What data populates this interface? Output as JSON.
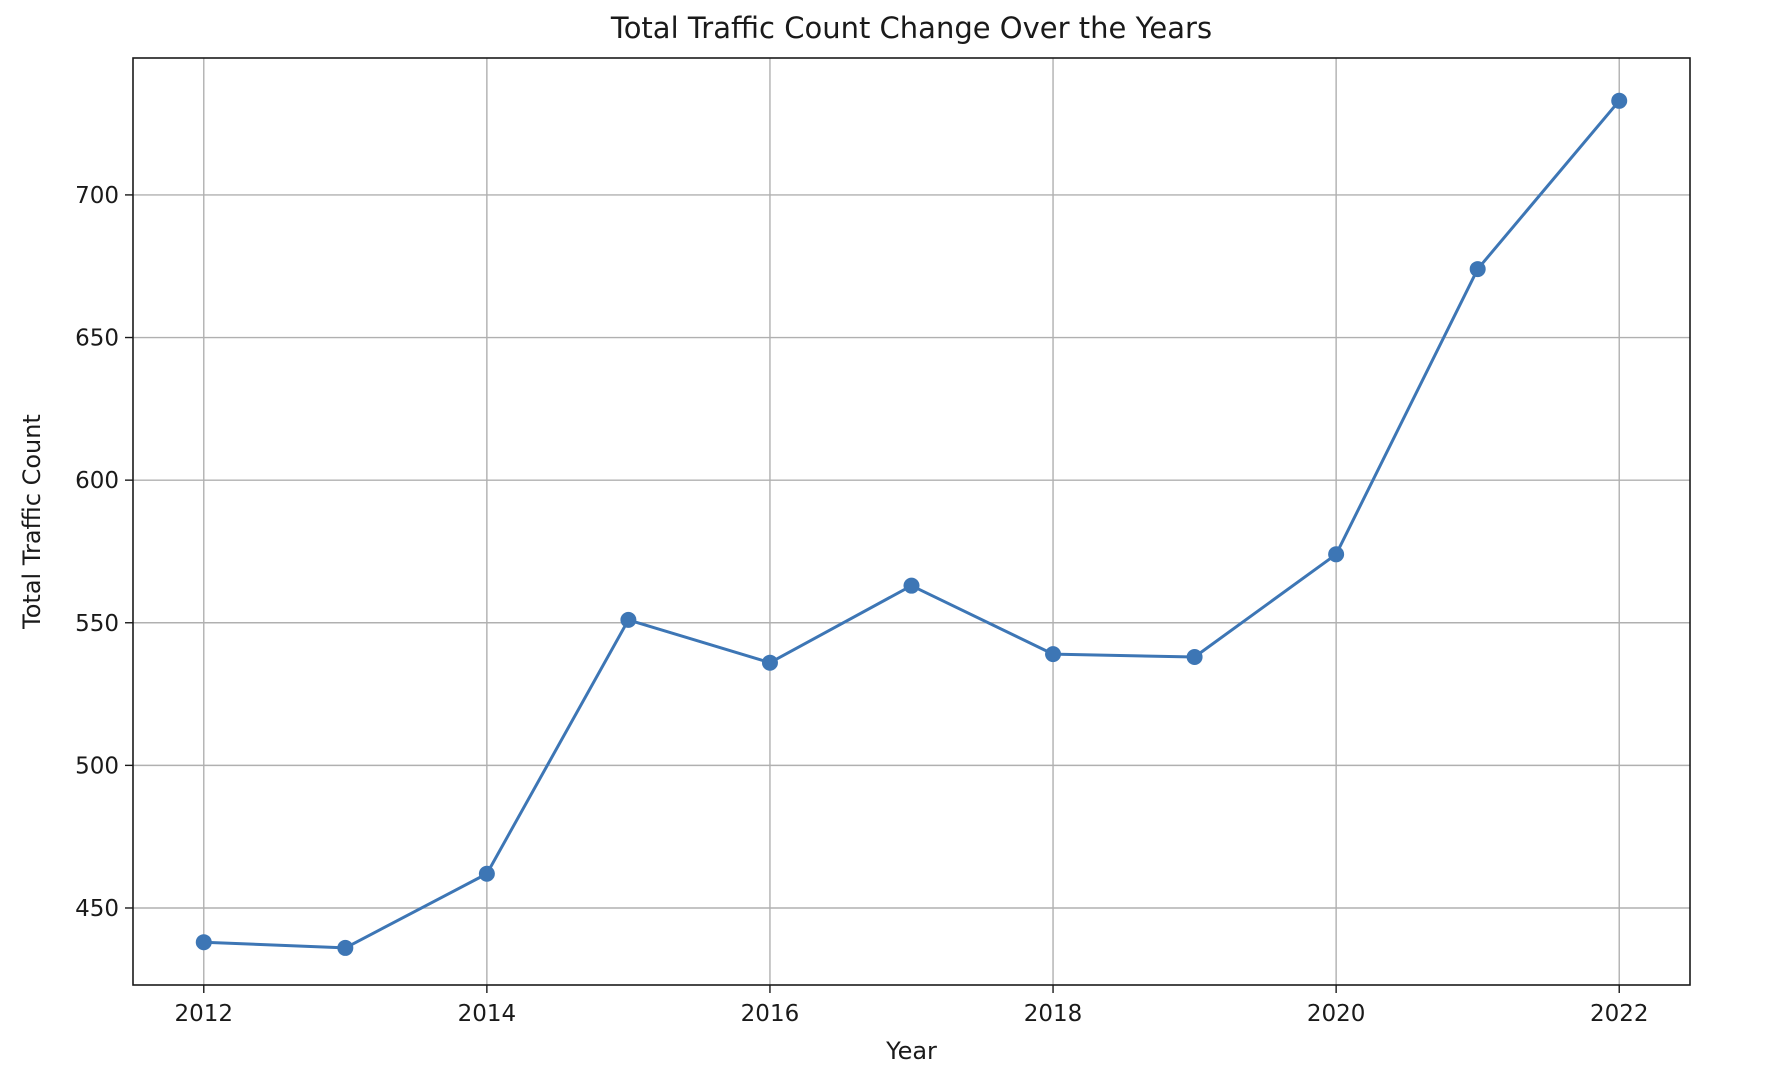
{
  "chart_data": {
    "type": "line",
    "title": "Total Traffic Count Change Over the Years",
    "xlabel": "Year",
    "ylabel": "Total Traffic Count",
    "x": [
      2012,
      2013,
      2014,
      2015,
      2016,
      2017,
      2018,
      2019,
      2020,
      2021,
      2022
    ],
    "series": [
      {
        "values": [
          438,
          436,
          462,
          551,
          536,
          563,
          539,
          538,
          574,
          674,
          733
        ]
      }
    ],
    "xlim": [
      2011.5,
      2022.5
    ],
    "ylim": [
      423,
      748
    ],
    "x_ticks": [
      2012,
      2014,
      2016,
      2018,
      2020,
      2022
    ],
    "y_ticks": [
      450,
      500,
      550,
      600,
      650,
      700
    ],
    "x_tick_labels": [
      "2012",
      "2014",
      "2016",
      "2018",
      "2020",
      "2022"
    ],
    "y_tick_labels": [
      "450",
      "500",
      "550",
      "600",
      "650",
      "700"
    ],
    "grid": true,
    "legend": "none",
    "colors": {
      "line": "#3d76b5",
      "marker": "#3d76b5",
      "grid": "#b0b0b0",
      "frame": "#1a1a1a"
    },
    "marker": "circle"
  }
}
